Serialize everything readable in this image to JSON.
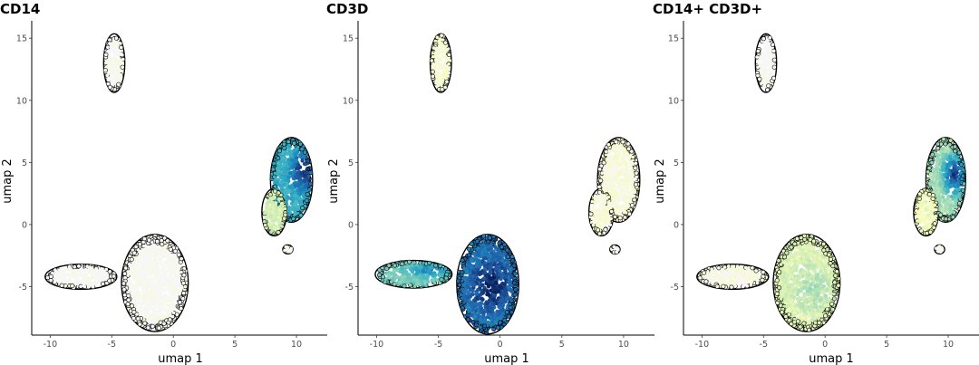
{
  "chart_data": [
    {
      "type": "scatter",
      "title": "CD14",
      "xlabel": "umap 1",
      "ylabel": "umap 2",
      "xlim": [
        -11.5,
        12.5
      ],
      "ylim": [
        -8.9,
        16.4
      ],
      "xticks": [
        -10,
        -5,
        0,
        5,
        10
      ],
      "yticks": [
        -5,
        0,
        5,
        10,
        15
      ],
      "grid": false,
      "legend": "none",
      "clusters": [
        {
          "name": "top-island",
          "center": [
            -4.8,
            13.0
          ],
          "radius": [
            0.75,
            2.25
          ],
          "level": 0.0
        },
        {
          "name": "right-cluster",
          "center": [
            9.6,
            3.6
          ],
          "radius": [
            1.6,
            3.3
          ],
          "level": 0.6,
          "hotspot": [
            10.5,
            4.3
          ],
          "hot_level": 1.0
        },
        {
          "name": "right-arm",
          "center": [
            8.2,
            1.0
          ],
          "radius": [
            0.9,
            1.8
          ],
          "level": 0.25
        },
        {
          "name": "left-tail",
          "center": [
            -7.5,
            -4.2
          ],
          "radius": [
            2.8,
            0.9
          ],
          "level": 0.0
        },
        {
          "name": "bottom-blob",
          "center": [
            -1.5,
            -4.7
          ],
          "radius": [
            2.6,
            3.8
          ],
          "level": 0.0
        },
        {
          "name": "small-dot",
          "center": [
            9.3,
            -2.0
          ],
          "radius": [
            0.3,
            0.25
          ],
          "level": 0.0
        }
      ]
    },
    {
      "type": "scatter",
      "title": "CD3D",
      "xlabel": "umap 1",
      "ylabel": "umap 2",
      "xlim": [
        -11.5,
        12.5
      ],
      "ylim": [
        -8.9,
        16.4
      ],
      "xticks": [
        -10,
        -5,
        0,
        5,
        10
      ],
      "yticks": [
        -5,
        0,
        5,
        10,
        15
      ],
      "grid": false,
      "legend": "none",
      "clusters": [
        {
          "name": "top-island",
          "center": [
            -4.8,
            13.0
          ],
          "radius": [
            0.75,
            2.25
          ],
          "level": 0.08
        },
        {
          "name": "right-cluster",
          "center": [
            9.6,
            3.6
          ],
          "radius": [
            1.6,
            3.3
          ],
          "level": 0.06
        },
        {
          "name": "right-arm",
          "center": [
            8.2,
            1.0
          ],
          "radius": [
            0.9,
            1.8
          ],
          "level": 0.06
        },
        {
          "name": "left-tail",
          "center": [
            -7.0,
            -4.0
          ],
          "radius": [
            3.0,
            1.0
          ],
          "level": 0.45,
          "hotspot": [
            -5.8,
            -3.7
          ],
          "hot_level": 0.75
        },
        {
          "name": "bottom-blob",
          "center": [
            -1.0,
            -4.8
          ],
          "radius": [
            2.4,
            3.9
          ],
          "level": 0.8,
          "hotspot": [
            -0.8,
            -5.0
          ],
          "hot_level": 1.0
        },
        {
          "name": "small-dot",
          "center": [
            9.3,
            -2.0
          ],
          "radius": [
            0.3,
            0.25
          ],
          "level": 0.0
        }
      ]
    },
    {
      "type": "scatter",
      "title": "CD14+ CD3D+",
      "xlabel": "umap 1",
      "ylabel": "umap 2",
      "xlim": [
        -11.5,
        12.5
      ],
      "ylim": [
        -8.9,
        16.4
      ],
      "xticks": [
        -10,
        -5,
        0,
        5,
        10
      ],
      "yticks": [
        -5,
        0,
        5,
        10,
        15
      ],
      "grid": false,
      "legend": "none",
      "clusters": [
        {
          "name": "top-island",
          "center": [
            -4.8,
            13.0
          ],
          "radius": [
            0.75,
            2.25
          ],
          "level": 0.0
        },
        {
          "name": "right-cluster",
          "center": [
            9.8,
            3.6
          ],
          "radius": [
            1.5,
            3.3
          ],
          "level": 0.35,
          "hotspot": [
            10.5,
            4.0
          ],
          "hot_level": 1.0
        },
        {
          "name": "right-arm",
          "center": [
            8.2,
            1.0
          ],
          "radius": [
            0.9,
            1.8
          ],
          "level": 0.15
        },
        {
          "name": "left-tail",
          "center": [
            -7.5,
            -4.2
          ],
          "radius": [
            2.8,
            0.9
          ],
          "level": 0.05
        },
        {
          "name": "bottom-blob",
          "center": [
            -1.5,
            -4.7
          ],
          "radius": [
            2.6,
            3.8
          ],
          "level": 0.22,
          "hotspot": [
            -1.0,
            -5.2
          ],
          "hot_level": 0.35
        },
        {
          "name": "small-dot",
          "center": [
            9.3,
            -2.0
          ],
          "radius": [
            0.3,
            0.25
          ],
          "level": 0.0
        }
      ]
    }
  ],
  "colorscale": [
    "#f7f7f7",
    "#f7fcb9",
    "#c7e9b4",
    "#7fcdbb",
    "#41b6c4",
    "#1d91c0",
    "#225ea8",
    "#081d58"
  ]
}
